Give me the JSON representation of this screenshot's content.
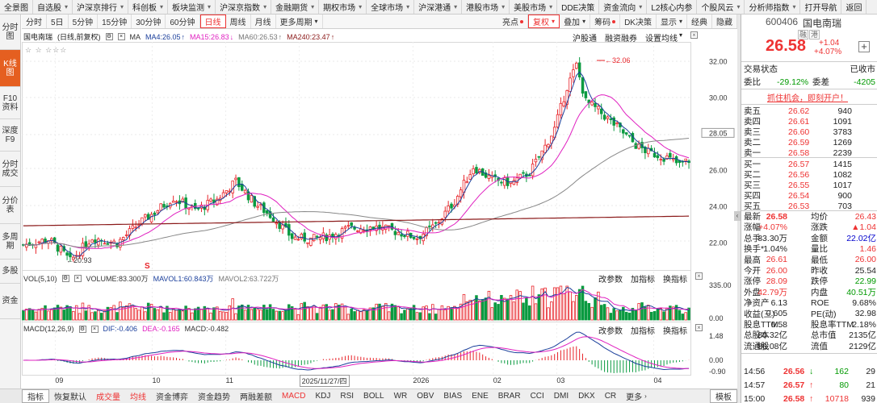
{
  "top_menu": [
    {
      "label": "全景图",
      "dd": false
    },
    {
      "label": "自选股",
      "dd": true
    },
    {
      "label": "沪深京排行",
      "dd": true
    },
    {
      "label": "科创板",
      "dd": true
    },
    {
      "label": "板块监测",
      "dd": true
    },
    {
      "label": "沪深京指数",
      "dd": true
    },
    {
      "label": "金融期货",
      "dd": true
    },
    {
      "label": "期权市场",
      "dd": true
    },
    {
      "label": "全球市场",
      "dd": true
    },
    {
      "label": "沪深港通",
      "dd": true
    },
    {
      "label": "港股市场",
      "dd": true
    },
    {
      "label": "美股市场",
      "dd": true
    },
    {
      "label": "DDE决策",
      "dd": false
    },
    {
      "label": "资金流向",
      "dd": true
    },
    {
      "label": "L2核心内参",
      "dd": false
    },
    {
      "label": "个股风云",
      "dd": true
    },
    {
      "label": "分析师指数",
      "dd": true
    },
    {
      "label": "打开导航",
      "dd": false
    },
    {
      "label": "返回",
      "dd": false
    }
  ],
  "left_tabs": [
    "分时图",
    "K线图",
    "F10资料",
    "深度F9",
    "分时成交",
    "分价表",
    "多周期",
    "多股",
    "资金"
  ],
  "periods": [
    "分时",
    "5日",
    "5分钟",
    "15分钟",
    "30分钟",
    "60分钟",
    "日线",
    "周线",
    "月线",
    "更多周期"
  ],
  "period_active": "日线",
  "tools": [
    {
      "label": "亮点",
      "dot": true
    },
    {
      "label": "复权",
      "dd": true,
      "active": true
    },
    {
      "label": "叠加",
      "dd": true
    },
    {
      "label": "筹码",
      "dot": true
    },
    {
      "label": "DK决策",
      "dd": false
    },
    {
      "label": "显示",
      "dd": true
    },
    {
      "label": "经典",
      "dd": false
    },
    {
      "label": "隐藏",
      "dd": false
    }
  ],
  "price_panel": {
    "name": "国电南瑞",
    "mode": "(日线,前复权)",
    "ma": [
      {
        "label": "MA",
        "color": "#333"
      },
      {
        "label": "MA4:26.05",
        "arrow": "↑",
        "color": "#1b3f9b"
      },
      {
        "label": "MA15:26.83",
        "arrow": "↓",
        "color": "#e020c0"
      },
      {
        "label": "MA60:26.53",
        "arrow": "↑",
        "color": "#777"
      },
      {
        "label": "MA240:23.47",
        "arrow": "↑",
        "color": "#8b1a1a"
      }
    ],
    "buttons": [
      "沪股通",
      "融资融券",
      "设置均线"
    ],
    "marks": "☆ ☆  ☆☆☆",
    "y_ticks": [
      32.0,
      30.0,
      28.05,
      26.0,
      24.0,
      22.0
    ],
    "hi_label": "32.06",
    "lo_label": "20.93",
    "s_marker": "S"
  },
  "vol_panel": {
    "labels": [
      "VOL(5,10)",
      "VOLUME:83.300万",
      "MAVOL1:60.843万",
      "MAVOL2:63.722万"
    ],
    "buttons": [
      "改参数",
      "加指标",
      "换指标"
    ],
    "y_ticks": [
      "335.00",
      "0.00"
    ]
  },
  "macd_panel": {
    "labels": [
      "MACD(12,26,9)",
      "DIF:-0.406",
      "DEA:-0.165",
      "MACD:-0.482"
    ],
    "buttons": [
      "改参数",
      "加指标",
      "换指标"
    ],
    "y_ticks": [
      "1.48",
      "0.00",
      "-0.90"
    ]
  },
  "x_labels": [
    {
      "t": "09",
      "x": 0.05
    },
    {
      "t": "10",
      "x": 0.195
    },
    {
      "t": "11",
      "x": 0.305
    },
    {
      "t": "2025/11/27/四",
      "x": 0.415
    },
    {
      "t": "2026",
      "x": 0.585
    },
    {
      "t": "02",
      "x": 0.705
    },
    {
      "t": "03",
      "x": 0.8
    },
    {
      "t": "04",
      "x": 0.945
    }
  ],
  "bottom_tabs": [
    {
      "t": "指标",
      "a": true
    },
    {
      "t": "恢复默认"
    },
    {
      "t": "成交量",
      "r": true
    },
    {
      "t": "均线",
      "r": true
    },
    {
      "t": "资金博弈"
    },
    {
      "t": "资金趋势"
    },
    {
      "t": "两融差额"
    },
    {
      "t": "MACD",
      "r": true
    },
    {
      "t": "KDJ"
    },
    {
      "t": "RSI"
    },
    {
      "t": "BOLL"
    },
    {
      "t": "WR"
    },
    {
      "t": "OBV"
    },
    {
      "t": "BIAS"
    },
    {
      "t": "ENE"
    },
    {
      "t": "BRAR"
    },
    {
      "t": "CCI"
    },
    {
      "t": "DMI"
    },
    {
      "t": "DKX"
    },
    {
      "t": "CR"
    },
    {
      "t": "更多"
    },
    {
      "t": "模板",
      "a": true
    }
  ],
  "quote": {
    "code": "600406",
    "name": "国电南瑞",
    "tags": [
      "融",
      "港"
    ],
    "price": "26.58",
    "change": "+1.04",
    "pct": "+4.07%",
    "status_label": "交易状态",
    "status_value": "已收市",
    "wb_label": "委比",
    "wb": "-29.12%",
    "wc_label": "委差",
    "wc": "-4205",
    "promo": "抓住机会，即刻开户！",
    "asks": [
      {
        "n": "卖五",
        "p": "26.62",
        "v": "940"
      },
      {
        "n": "卖四",
        "p": "26.61",
        "v": "1091"
      },
      {
        "n": "卖三",
        "p": "26.60",
        "v": "3783"
      },
      {
        "n": "卖二",
        "p": "26.59",
        "v": "1269"
      },
      {
        "n": "卖一",
        "p": "26.58",
        "v": "2239"
      }
    ],
    "bids": [
      {
        "n": "买一",
        "p": "26.57",
        "v": "1415"
      },
      {
        "n": "买二",
        "p": "26.56",
        "v": "1082"
      },
      {
        "n": "买三",
        "p": "26.55",
        "v": "1017"
      },
      {
        "n": "买四",
        "p": "26.54",
        "v": "900"
      },
      {
        "n": "买五",
        "p": "26.53",
        "v": "703"
      }
    ],
    "stats": [
      [
        {
          "t": "最新"
        },
        {
          "t": "26.58",
          "c": "red"
        },
        {
          "t": "均价"
        },
        {
          "t": "26.43",
          "c": "red"
        }
      ],
      [
        {
          "t": "涨幅"
        },
        {
          "t": "+4.07%",
          "c": "red"
        },
        {
          "t": "涨跌"
        },
        {
          "t": "▲1.04",
          "c": "red"
        }
      ],
      [
        {
          "t": "总手"
        },
        {
          "t": "83.30万"
        },
        {
          "t": "金额"
        },
        {
          "t": "22.02亿",
          "c": "blue"
        }
      ],
      [
        {
          "t": "换手*"
        },
        {
          "t": "1.04%"
        },
        {
          "t": "量比"
        },
        {
          "t": "1.46",
          "c": "red"
        }
      ],
      [
        {
          "t": "最高"
        },
        {
          "t": "26.61",
          "c": "red"
        },
        {
          "t": "最低"
        },
        {
          "t": "26.00",
          "c": "red"
        }
      ],
      [
        {
          "t": "今开"
        },
        {
          "t": "26.00",
          "c": "red"
        },
        {
          "t": "昨收"
        },
        {
          "t": "25.54"
        }
      ],
      [
        {
          "t": "涨停"
        },
        {
          "t": "28.09",
          "c": "red"
        },
        {
          "t": "跌停"
        },
        {
          "t": "22.99",
          "c": "green"
        }
      ],
      [
        {
          "t": "外盘"
        },
        {
          "t": "42.79万",
          "c": "red"
        },
        {
          "t": "内盘"
        },
        {
          "t": "40.51万",
          "c": "green"
        }
      ],
      [
        {
          "t": "净资产"
        },
        {
          "t": "6.13"
        },
        {
          "t": "ROE"
        },
        {
          "t": "9.68%"
        }
      ],
      [
        {
          "t": "收益(三)"
        },
        {
          "t": "0.605"
        },
        {
          "t": "PE(动)"
        },
        {
          "t": "32.98"
        }
      ],
      [
        {
          "t": "股息TTM"
        },
        {
          "t": "0.58"
        },
        {
          "t": "股息率TTM"
        },
        {
          "t": "2.18%"
        }
      ],
      [
        {
          "t": "总股本"
        },
        {
          "t": "80.32亿"
        },
        {
          "t": "总市值"
        },
        {
          "t": "2135亿"
        }
      ],
      [
        {
          "t": "流通股"
        },
        {
          "t": "80.08亿"
        },
        {
          "t": "流值"
        },
        {
          "t": "2129亿"
        }
      ]
    ],
    "ticks": [
      {
        "t": "14:56",
        "p": "26.56",
        "d": "↓",
        "v": "162",
        "n": "29"
      },
      {
        "t": "14:57",
        "p": "26.57",
        "d": "↑",
        "v": "80",
        "n": "21"
      },
      {
        "t": "15:00",
        "p": "26.58",
        "d": "↑",
        "v": "10718",
        "n": "939"
      }
    ]
  },
  "colors": {
    "up": "#e8242a",
    "down": "#0a9a40",
    "accent": "#e55f20"
  }
}
